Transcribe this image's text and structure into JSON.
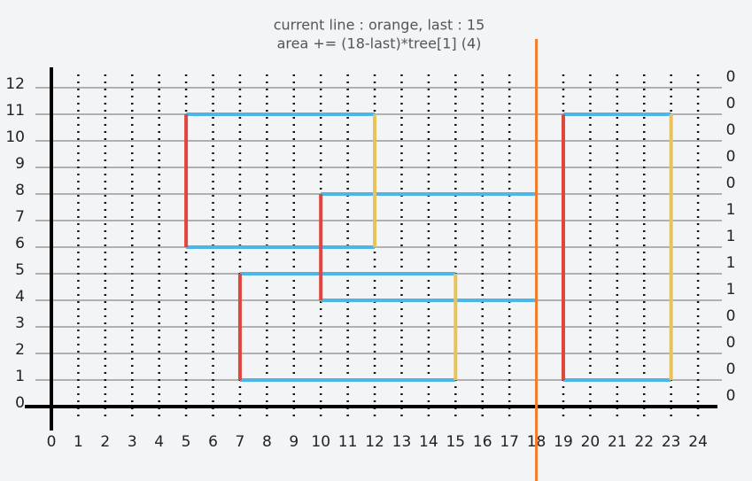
{
  "title": [
    "current line : orange, last : 15",
    "area += (18-last)*tree[1] (4)"
  ],
  "x_labels": [
    0,
    1,
    2,
    3,
    4,
    5,
    6,
    7,
    8,
    9,
    10,
    11,
    12,
    13,
    14,
    15,
    16,
    17,
    18,
    19,
    20,
    21,
    22,
    23,
    24
  ],
  "y_labels": [
    0,
    1,
    2,
    3,
    4,
    5,
    6,
    7,
    8,
    9,
    10,
    11,
    12
  ],
  "tree": [
    0,
    0,
    0,
    0,
    0,
    1,
    1,
    1,
    1,
    0,
    0,
    0,
    0
  ],
  "sweep": {
    "x": 18,
    "color": "#f07c2c"
  },
  "edges": [
    {
      "x1": 5,
      "y1": 11,
      "x2": 12,
      "y2": 11,
      "color": "#4db6e8"
    },
    {
      "x1": 5,
      "y1": 6,
      "x2": 12,
      "y2": 6,
      "color": "#4db6e8"
    },
    {
      "x1": 10,
      "y1": 8,
      "x2": 18,
      "y2": 8,
      "color": "#4db6e8"
    },
    {
      "x1": 10,
      "y1": 4,
      "x2": 18,
      "y2": 4,
      "color": "#4db6e8"
    },
    {
      "x1": 7,
      "y1": 5,
      "x2": 15,
      "y2": 5,
      "color": "#4db6e8"
    },
    {
      "x1": 7,
      "y1": 1,
      "x2": 15,
      "y2": 1,
      "color": "#4db6e8"
    },
    {
      "x1": 19,
      "y1": 11,
      "x2": 23,
      "y2": 11,
      "color": "#4db6e8"
    },
    {
      "x1": 19,
      "y1": 1,
      "x2": 23,
      "y2": 1,
      "color": "#4db6e8"
    },
    {
      "x1": 5,
      "y1": 6,
      "x2": 5,
      "y2": 11,
      "color": "#e0463c"
    },
    {
      "x1": 10,
      "y1": 4,
      "x2": 10,
      "y2": 8,
      "color": "#e0463c"
    },
    {
      "x1": 7,
      "y1": 1,
      "x2": 7,
      "y2": 5,
      "color": "#e0463c"
    },
    {
      "x1": 19,
      "y1": 1,
      "x2": 19,
      "y2": 11,
      "color": "#e0463c"
    },
    {
      "x1": 12,
      "y1": 6,
      "x2": 12,
      "y2": 11,
      "color": "#e8c35a"
    },
    {
      "x1": 15,
      "y1": 1,
      "x2": 15,
      "y2": 5,
      "color": "#e8c35a"
    },
    {
      "x1": 23,
      "y1": 1,
      "x2": 23,
      "y2": 11,
      "color": "#e8c35a"
    }
  ]
}
